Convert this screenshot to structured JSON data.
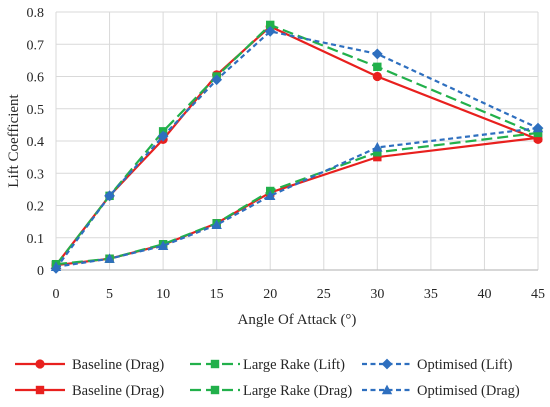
{
  "chart_data": {
    "type": "line",
    "xlabel": "Angle Of Attack (°)",
    "ylabel": "Lift Coefficient",
    "xlim": [
      0,
      45
    ],
    "ylim": [
      0,
      0.8
    ],
    "xticks": [
      0,
      5,
      10,
      15,
      20,
      25,
      30,
      35,
      40,
      45
    ],
    "yticks": [
      0,
      0.1,
      0.2,
      0.3,
      0.4,
      0.5,
      0.6,
      0.7,
      0.8
    ],
    "grid": true,
    "legend": "bottom",
    "series": [
      {
        "name": "Baseline (Drag)",
        "color": "#e8201e",
        "line_style": "solid",
        "marker": "circle",
        "x": [
          0,
          5,
          10,
          15,
          20,
          30,
          45
        ],
        "y": [
          0.015,
          0.23,
          0.405,
          0.605,
          0.755,
          0.6,
          0.405
        ]
      },
      {
        "name": "Large Rake (Lift)",
        "color": "#22b04b",
        "line_style": "long-dash",
        "marker": "square",
        "x": [
          0,
          5,
          10,
          15,
          20,
          30,
          45
        ],
        "y": [
          0.015,
          0.23,
          0.43,
          0.6,
          0.76,
          0.63,
          0.42
        ]
      },
      {
        "name": "Optimised (Lift)",
        "color": "#2e6fbf",
        "line_style": "dash",
        "marker": "diamond",
        "x": [
          0,
          5,
          10,
          15,
          20,
          30,
          45
        ],
        "y": [
          0.005,
          0.23,
          0.415,
          0.59,
          0.74,
          0.67,
          0.44
        ]
      },
      {
        "name": "Baseline (Drag)",
        "color": "#e8201e",
        "line_style": "solid",
        "marker": "square",
        "x": [
          0,
          5,
          10,
          15,
          20,
          30,
          45
        ],
        "y": [
          0.015,
          0.035,
          0.078,
          0.145,
          0.24,
          0.35,
          0.41
        ]
      },
      {
        "name": "Large Rake (Drag)",
        "color": "#22b04b",
        "line_style": "long-dash",
        "marker": "square",
        "x": [
          0,
          5,
          10,
          15,
          20,
          30,
          45
        ],
        "y": [
          0.018,
          0.035,
          0.08,
          0.145,
          0.245,
          0.365,
          0.425
        ]
      },
      {
        "name": "Optimised (Drag)",
        "color": "#2e6fbf",
        "line_style": "dash",
        "marker": "triangle",
        "x": [
          0,
          5,
          10,
          15,
          20,
          30,
          45
        ],
        "y": [
          0.01,
          0.035,
          0.075,
          0.14,
          0.23,
          0.38,
          0.44
        ]
      }
    ]
  }
}
